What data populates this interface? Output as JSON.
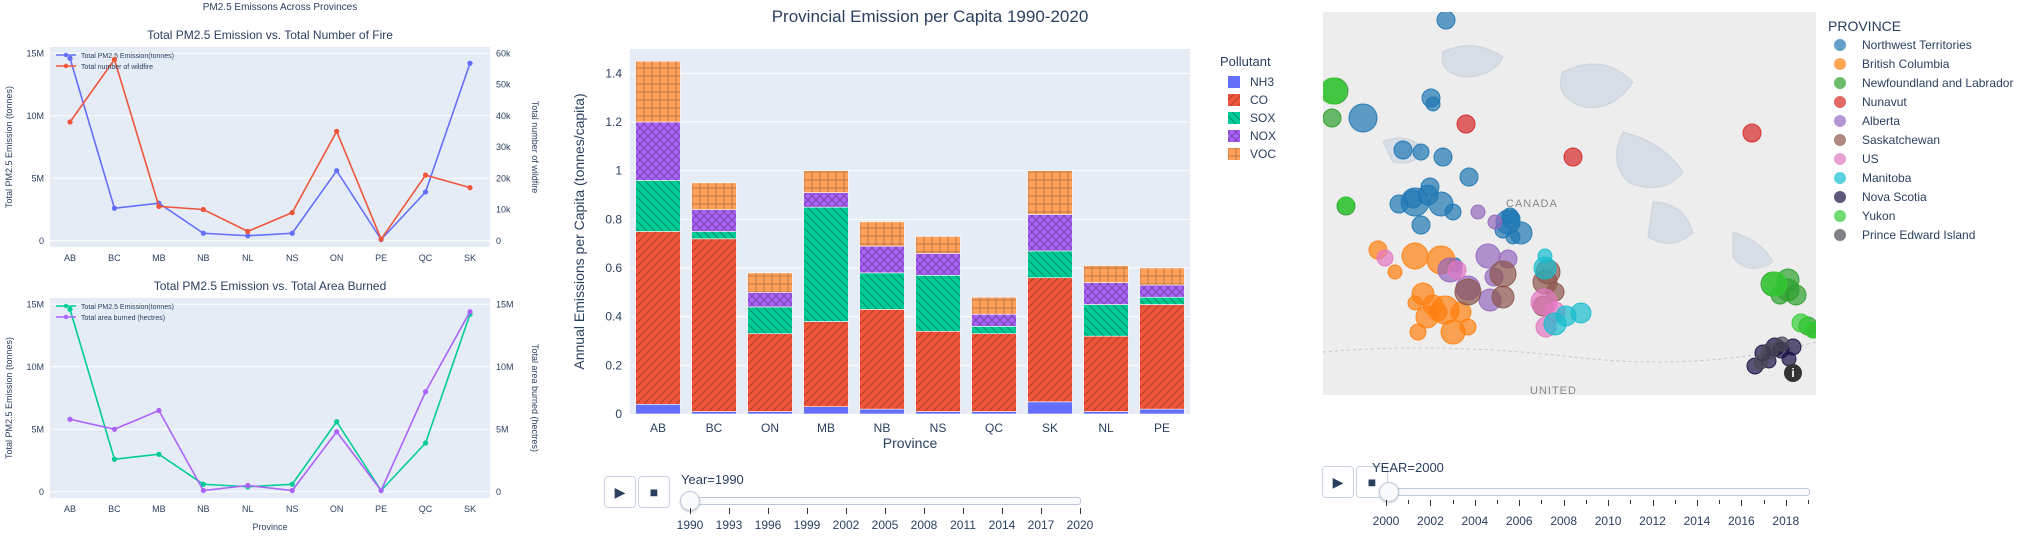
{
  "colors": {
    "plot_bg": "#e5ecf6",
    "blue": "#636efa",
    "red": "#ef553b",
    "teal": "#00cc96",
    "purple": "#ab63fa",
    "orange": "#ffa15a",
    "text": "#2a3f5f"
  },
  "left": {
    "suptitle": "PM2.5 Emissons Across Provinces",
    "top": {
      "title": "Total PM2.5 Emission vs. Total Number of Fire",
      "ylabel": "Total PM2.5 Emission (tonnes)",
      "y2label": "Total number of wildfire",
      "legend": [
        "Total PM2.5 Emission(tonnes)",
        "Total number of wildfire"
      ]
    },
    "bottom": {
      "title": "Total PM2.5 Emission vs. Total Area Burned",
      "ylabel": "Total PM2.5 Emission (tonnes)",
      "y2label": "Total area burned (hectres)",
      "xlabel": "Province",
      "legend": [
        "Total PM2.5 Emission(tonnes)",
        "Total area burned (hectres)"
      ]
    }
  },
  "middle": {
    "title": "Provincial Emission per Capita 1990-2020",
    "ylabel": "Annual Emissions per Capita (tonnes/capita)",
    "xlabel": "Province",
    "legend_title": "Pollutant",
    "slider_label": "Year=1990",
    "slider_ticks": [
      "1990",
      "1993",
      "1996",
      "1999",
      "2002",
      "2005",
      "2008",
      "2011",
      "2014",
      "2017",
      "2020"
    ]
  },
  "right": {
    "legend_title": "PROVINCE",
    "map_label_canada": "CANADA",
    "map_label_united": "UNITED",
    "slider_label": "YEAR=2000",
    "slider_ticks": [
      "2000",
      "2002",
      "2004",
      "2006",
      "2008",
      "2010",
      "2012",
      "2014",
      "2016",
      "2018"
    ],
    "provinces": [
      {
        "name": "Northwest Territories",
        "color": "#1f77b4"
      },
      {
        "name": "British Columbia",
        "color": "#ff7f0e"
      },
      {
        "name": "Newfoundland and Labrador",
        "color": "#2ca02c"
      },
      {
        "name": "Nunavut",
        "color": "#d62728"
      },
      {
        "name": "Alberta",
        "color": "#9467bd"
      },
      {
        "name": "Saskatchewan",
        "color": "#8c564b"
      },
      {
        "name": "US",
        "color": "#e377c2"
      },
      {
        "name": "Manitoba",
        "color": "#17becf"
      },
      {
        "name": "Nova Scotia",
        "color": "#1a1145"
      },
      {
        "name": "Yukon",
        "color": "#32cd32"
      },
      {
        "name": "Prince Edward Island",
        "color": "#4a4a55"
      }
    ]
  },
  "chart_data": [
    {
      "type": "line",
      "title": "Total PM2.5 Emission vs. Total Number of Fire",
      "categories": [
        "AB",
        "BC",
        "MB",
        "NB",
        "NL",
        "NS",
        "ON",
        "PE",
        "QC",
        "SK"
      ],
      "ylabel": "Total PM2.5 Emission (tonnes)",
      "y2label": "Total number of wildfire",
      "ylim": [
        -0.5,
        15.5
      ],
      "y_ticks": [
        "0",
        "5M",
        "10M",
        "15M"
      ],
      "y2lim": [
        -2,
        62
      ],
      "y2_ticks": [
        "0",
        "10k",
        "20k",
        "30k",
        "40k",
        "50k",
        "60k"
      ],
      "series": [
        {
          "name": "Total PM2.5 Emission(tonnes)",
          "axis": "y",
          "color": "#636efa",
          "values": [
            14.6,
            2.6,
            3.0,
            0.6,
            0.4,
            0.6,
            5.6,
            0.1,
            3.9,
            14.2
          ]
        },
        {
          "name": "Total number of wildfire",
          "axis": "y2",
          "color": "#ef553b",
          "values": [
            38,
            58,
            11,
            10,
            3,
            9,
            35,
            0.5,
            21,
            17
          ]
        }
      ]
    },
    {
      "type": "line",
      "title": "Total PM2.5 Emission vs. Total Area Burned",
      "categories": [
        "AB",
        "BC",
        "MB",
        "NB",
        "NL",
        "NS",
        "ON",
        "PE",
        "QC",
        "SK"
      ],
      "xlabel": "Province",
      "ylabel": "Total PM2.5 Emission (tonnes)",
      "y2label": "Total area burned (hectres)",
      "ylim": [
        -0.5,
        15.5
      ],
      "y_ticks": [
        "0",
        "5M",
        "10M",
        "15M"
      ],
      "y2lim": [
        -0.5,
        15.5
      ],
      "y2_ticks": [
        "0",
        "5M",
        "10M",
        "15M"
      ],
      "series": [
        {
          "name": "Total PM2.5 Emission(tonnes)",
          "axis": "y",
          "color": "#00cc96",
          "values": [
            14.6,
            2.6,
            3.0,
            0.6,
            0.4,
            0.6,
            5.6,
            0.1,
            3.9,
            14.2
          ]
        },
        {
          "name": "Total area burned (hectres)",
          "axis": "y2",
          "color": "#ab63fa",
          "values": [
            5.8,
            5.0,
            6.5,
            0.1,
            0.5,
            0.1,
            4.8,
            0.1,
            8.0,
            14.4
          ]
        }
      ]
    },
    {
      "type": "bar",
      "title": "Provincial Emission per Capita 1990-2020",
      "categories": [
        "AB",
        "BC",
        "ON",
        "MB",
        "NB",
        "NS",
        "QC",
        "SK",
        "NL",
        "PE"
      ],
      "xlabel": "Province",
      "ylabel": "Annual Emissions per Capita (tonnes/capita)",
      "ylim": [
        0,
        1.5
      ],
      "y_ticks": [
        0,
        0.2,
        0.4,
        0.6,
        0.8,
        1,
        1.2,
        1.4
      ],
      "stacked": true,
      "series": [
        {
          "name": "NH3",
          "color": "#636efa",
          "values": [
            0.04,
            0.01,
            0.01,
            0.03,
            0.02,
            0.01,
            0.01,
            0.05,
            0.01,
            0.02
          ]
        },
        {
          "name": "CO",
          "color": "#ef553b",
          "values": [
            0.71,
            0.71,
            0.32,
            0.35,
            0.41,
            0.33,
            0.32,
            0.51,
            0.31,
            0.43
          ]
        },
        {
          "name": "SOX",
          "color": "#00cc96",
          "values": [
            0.21,
            0.03,
            0.11,
            0.47,
            0.15,
            0.23,
            0.03,
            0.11,
            0.13,
            0.03
          ]
        },
        {
          "name": "NOX",
          "color": "#ab63fa",
          "values": [
            0.24,
            0.09,
            0.06,
            0.06,
            0.11,
            0.09,
            0.05,
            0.15,
            0.09,
            0.05
          ]
        },
        {
          "name": "VOC",
          "color": "#ffa15a",
          "values": [
            0.25,
            0.11,
            0.08,
            0.09,
            0.1,
            0.07,
            0.07,
            0.18,
            0.07,
            0.07
          ]
        }
      ]
    }
  ]
}
